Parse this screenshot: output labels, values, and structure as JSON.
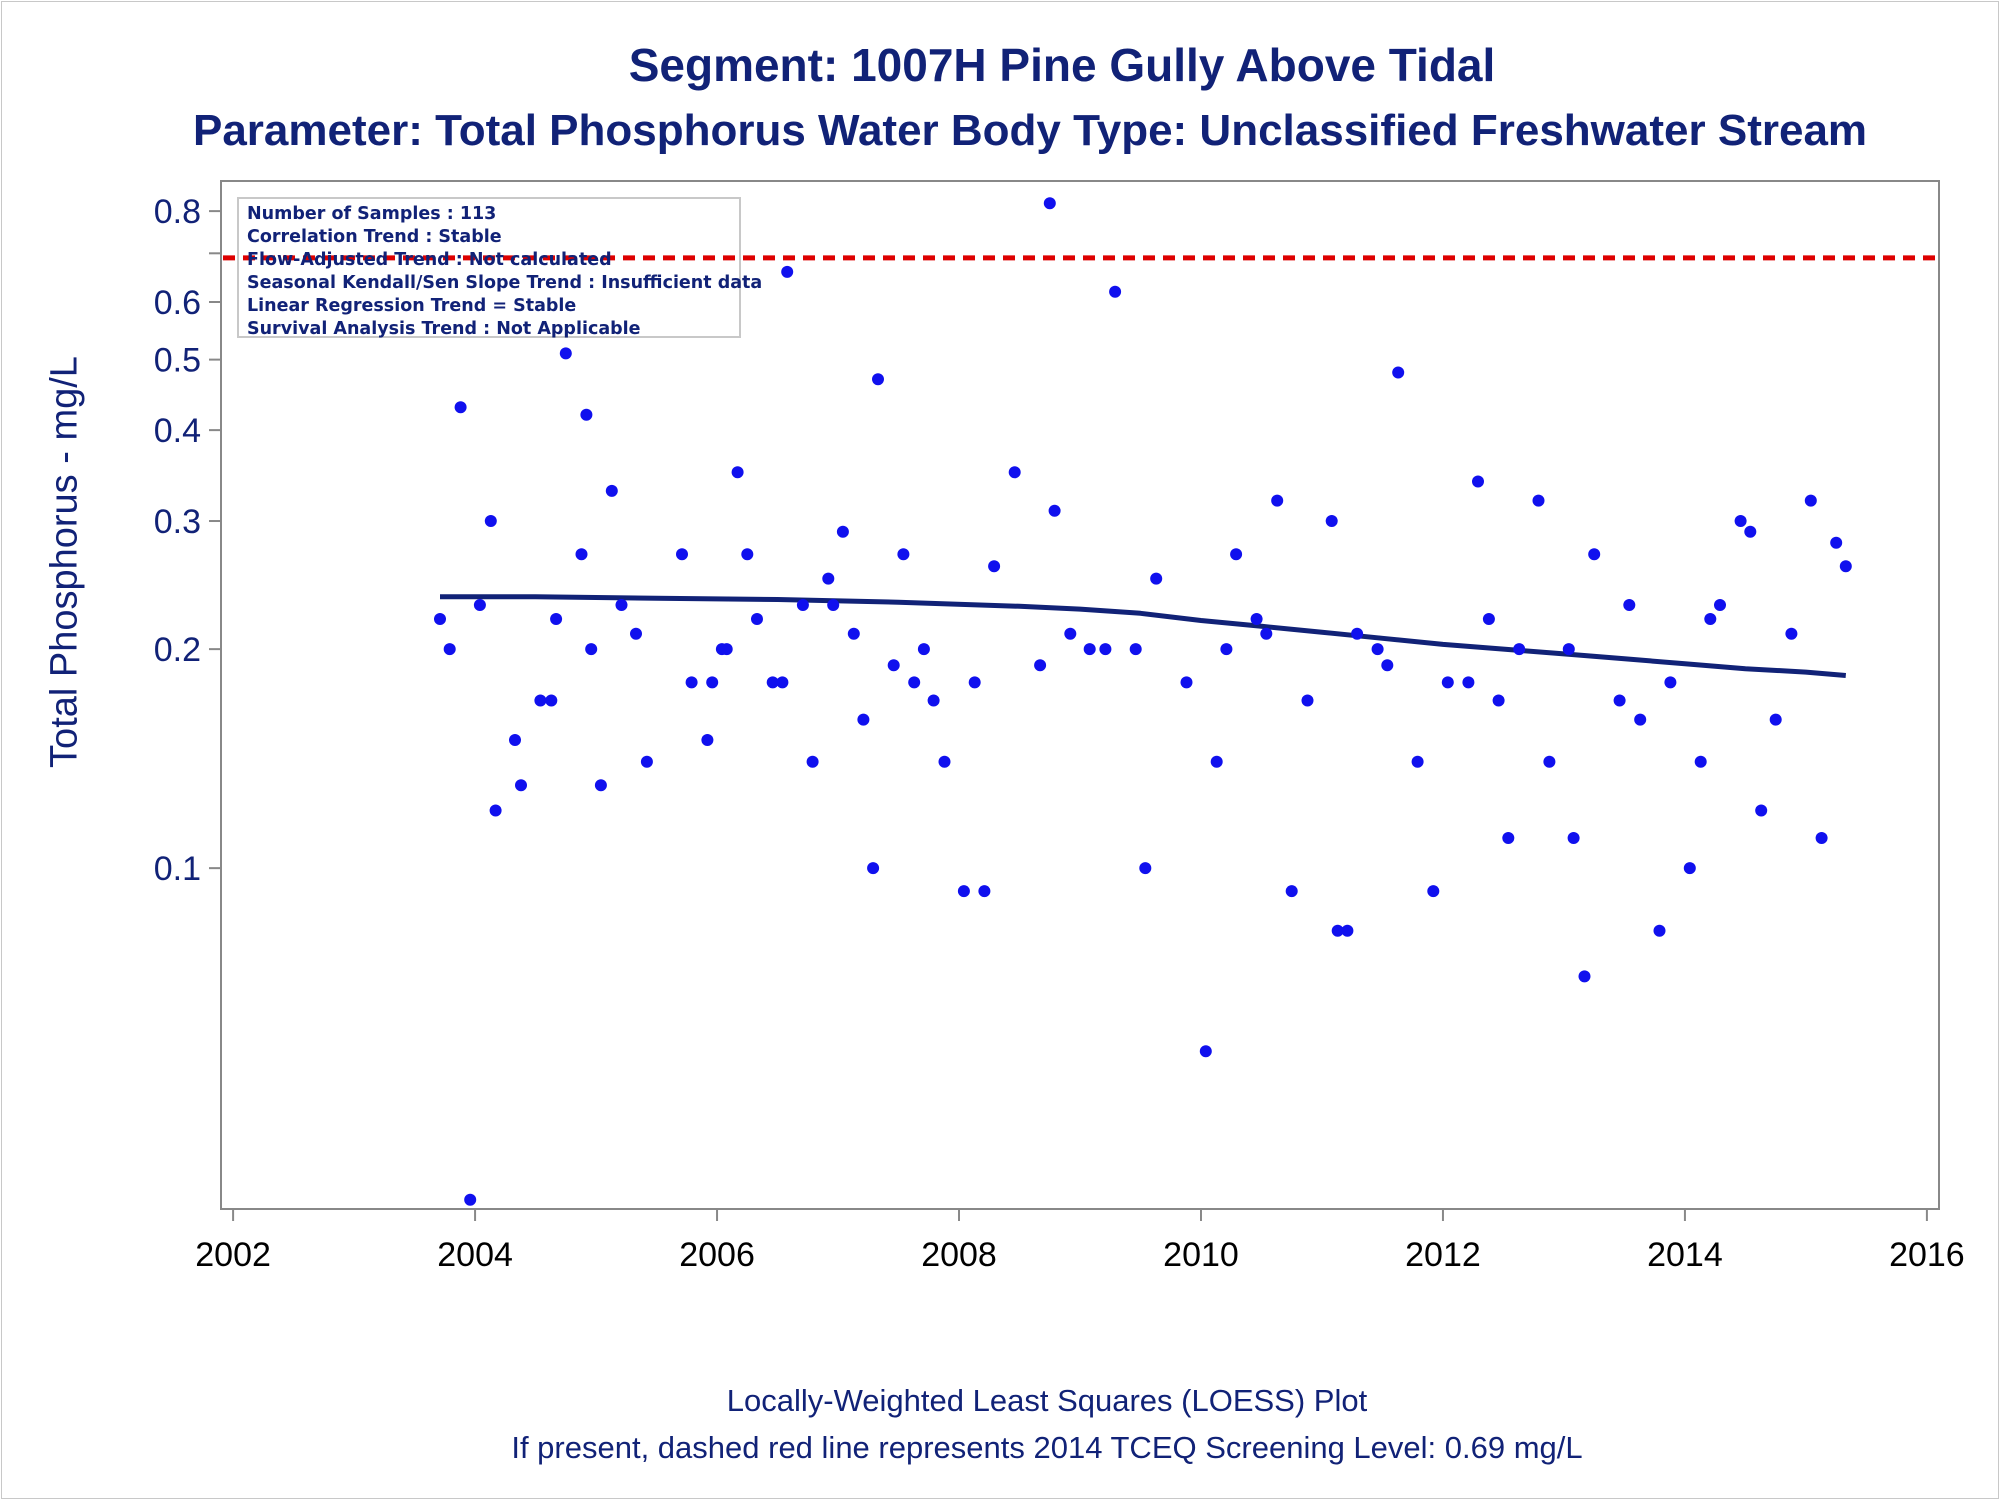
{
  "title": "Segment: 1007H  Pine Gully Above Tidal",
  "subtitle": "Parameter: Total Phosphorus   Water Body Type: Unclassified Freshwater Stream",
  "footnote1": "Locally-Weighted Least Squares (LOESS) Plot",
  "footnote2": "If present, dashed red line represents 2014 TCEQ Screening Level: 0.69 mg/L",
  "info_box": [
    "Number of Samples : 113",
    "Correlation Trend : Stable",
    "Flow-Adjusted Trend : Not calculated",
    "Seasonal Kendall/Sen Slope Trend : Insufficient data",
    "Linear Regression Trend = Stable",
    "Survival Analysis Trend : Not Applicable"
  ],
  "colors": {
    "text": "#112277",
    "points": "#1010ee",
    "loess_line": "#112277",
    "screening_line": "#dd0000",
    "axis": "#888888"
  },
  "chart_data": {
    "type": "scatter",
    "xlabel": "",
    "ylabel": "Total Phosphorus - mg/L",
    "x_scale": "linear (years)",
    "y_scale": "log",
    "xlim": [
      2001.9,
      2016.1
    ],
    "ylim": [
      0.034,
      0.88
    ],
    "x_ticks": [
      2002,
      2004,
      2006,
      2008,
      2010,
      2012,
      2014,
      2016
    ],
    "y_ticks": [
      0.1,
      0.2,
      0.3,
      0.4,
      0.5,
      0.6,
      0.8
    ],
    "y_minor_ticks": [
      0.7
    ],
    "screening_level": 0.69,
    "series": [
      {
        "type": "scatter",
        "points": [
          [
            2003.71,
            0.22
          ],
          [
            2003.79,
            0.2
          ],
          [
            2003.88,
            0.43
          ],
          [
            2003.96,
            0.035
          ],
          [
            2004.04,
            0.23
          ],
          [
            2004.13,
            0.3
          ],
          [
            2004.17,
            0.12
          ],
          [
            2004.33,
            0.15
          ],
          [
            2004.38,
            0.13
          ],
          [
            2004.54,
            0.17
          ],
          [
            2004.63,
            0.17
          ],
          [
            2004.67,
            0.22
          ],
          [
            2004.75,
            0.51
          ],
          [
            2004.88,
            0.27
          ],
          [
            2004.92,
            0.42
          ],
          [
            2004.96,
            0.2
          ],
          [
            2005.04,
            0.13
          ],
          [
            2005.13,
            0.33
          ],
          [
            2005.21,
            0.23
          ],
          [
            2005.33,
            0.21
          ],
          [
            2005.42,
            0.14
          ],
          [
            2005.71,
            0.27
          ],
          [
            2005.79,
            0.18
          ],
          [
            2005.92,
            0.15
          ],
          [
            2005.96,
            0.18
          ],
          [
            2006.04,
            0.2
          ],
          [
            2006.08,
            0.2
          ],
          [
            2006.17,
            0.35
          ],
          [
            2006.25,
            0.27
          ],
          [
            2006.33,
            0.22
          ],
          [
            2006.46,
            0.18
          ],
          [
            2006.54,
            0.18
          ],
          [
            2006.58,
            0.66
          ],
          [
            2006.71,
            0.23
          ],
          [
            2006.79,
            0.14
          ],
          [
            2006.92,
            0.25
          ],
          [
            2006.96,
            0.23
          ],
          [
            2007.04,
            0.29
          ],
          [
            2007.13,
            0.21
          ],
          [
            2007.21,
            0.16
          ],
          [
            2007.29,
            0.1
          ],
          [
            2007.33,
            0.47
          ],
          [
            2007.46,
            0.19
          ],
          [
            2007.54,
            0.27
          ],
          [
            2007.63,
            0.18
          ],
          [
            2007.71,
            0.2
          ],
          [
            2007.79,
            0.17
          ],
          [
            2007.88,
            0.14
          ],
          [
            2008.04,
            0.093
          ],
          [
            2008.13,
            0.18
          ],
          [
            2008.21,
            0.093
          ],
          [
            2008.29,
            0.26
          ],
          [
            2008.46,
            0.35
          ],
          [
            2008.67,
            0.19
          ],
          [
            2008.75,
            0.82
          ],
          [
            2008.79,
            0.31
          ],
          [
            2008.92,
            0.21
          ],
          [
            2009.08,
            0.2
          ],
          [
            2009.21,
            0.2
          ],
          [
            2009.29,
            0.62
          ],
          [
            2009.46,
            0.2
          ],
          [
            2009.54,
            0.1
          ],
          [
            2009.63,
            0.25
          ],
          [
            2009.88,
            0.18
          ],
          [
            2010.04,
            0.056
          ],
          [
            2010.13,
            0.14
          ],
          [
            2010.21,
            0.2
          ],
          [
            2010.29,
            0.27
          ],
          [
            2010.46,
            0.22
          ],
          [
            2010.54,
            0.21
          ],
          [
            2010.63,
            0.32
          ],
          [
            2010.75,
            0.093
          ],
          [
            2010.88,
            0.17
          ],
          [
            2011.08,
            0.3
          ],
          [
            2011.13,
            0.082
          ],
          [
            2011.21,
            0.082
          ],
          [
            2011.29,
            0.21
          ],
          [
            2011.46,
            0.2
          ],
          [
            2011.54,
            0.19
          ],
          [
            2011.63,
            0.48
          ],
          [
            2011.79,
            0.14
          ],
          [
            2011.92,
            0.093
          ],
          [
            2012.04,
            0.18
          ],
          [
            2012.21,
            0.18
          ],
          [
            2012.29,
            0.34
          ],
          [
            2012.38,
            0.22
          ],
          [
            2012.46,
            0.17
          ],
          [
            2012.54,
            0.11
          ],
          [
            2012.63,
            0.2
          ],
          [
            2012.79,
            0.32
          ],
          [
            2012.88,
            0.14
          ],
          [
            2013.04,
            0.2
          ],
          [
            2013.08,
            0.11
          ],
          [
            2013.17,
            0.071
          ],
          [
            2013.25,
            0.27
          ],
          [
            2013.46,
            0.17
          ],
          [
            2013.54,
            0.23
          ],
          [
            2013.63,
            0.16
          ],
          [
            2013.79,
            0.082
          ],
          [
            2013.88,
            0.18
          ],
          [
            2014.04,
            0.1
          ],
          [
            2014.13,
            0.14
          ],
          [
            2014.21,
            0.22
          ],
          [
            2014.29,
            0.23
          ],
          [
            2014.46,
            0.3
          ],
          [
            2014.54,
            0.29
          ],
          [
            2014.63,
            0.12
          ],
          [
            2014.75,
            0.16
          ],
          [
            2014.88,
            0.21
          ],
          [
            2015.04,
            0.32
          ],
          [
            2015.13,
            0.11
          ],
          [
            2015.25,
            0.28
          ],
          [
            2015.33,
            0.26
          ]
        ]
      },
      {
        "type": "line",
        "points": [
          [
            2003.71,
            0.236
          ],
          [
            2004.5,
            0.236
          ],
          [
            2005.5,
            0.235
          ],
          [
            2006.5,
            0.234
          ],
          [
            2007.5,
            0.232
          ],
          [
            2008.5,
            0.229
          ],
          [
            2009.0,
            0.227
          ],
          [
            2009.5,
            0.224
          ],
          [
            2010.0,
            0.219
          ],
          [
            2010.5,
            0.215
          ],
          [
            2011.0,
            0.211
          ],
          [
            2011.5,
            0.207
          ],
          [
            2012.0,
            0.203
          ],
          [
            2012.5,
            0.2
          ],
          [
            2013.0,
            0.197
          ],
          [
            2013.5,
            0.194
          ],
          [
            2014.0,
            0.191
          ],
          [
            2014.5,
            0.188
          ],
          [
            2015.0,
            0.186
          ],
          [
            2015.33,
            0.184
          ]
        ]
      }
    ]
  }
}
